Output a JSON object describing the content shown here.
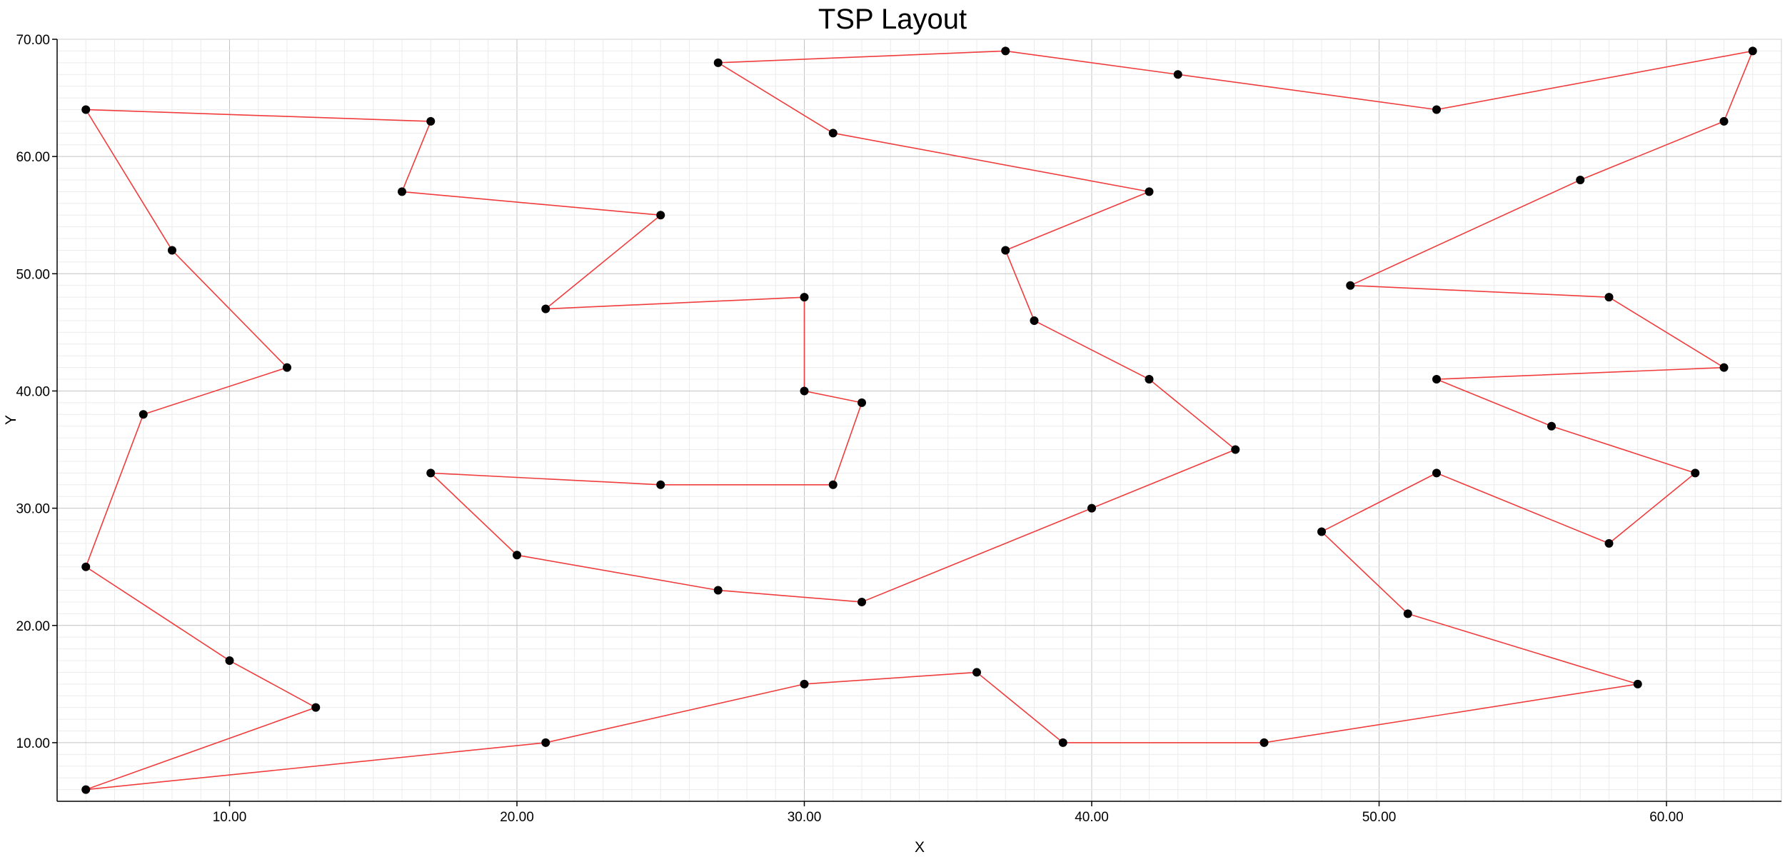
{
  "chart_data": {
    "type": "scatter",
    "title": "TSP Layout",
    "xlabel": "X",
    "ylabel": "Y",
    "xlim": [
      4,
      64
    ],
    "ylim": [
      5,
      70
    ],
    "x_ticks": [
      10,
      20,
      30,
      40,
      50,
      60
    ],
    "y_ticks": [
      10,
      20,
      30,
      40,
      50,
      60,
      70
    ],
    "x_tick_labels": [
      "10.00",
      "20.00",
      "30.00",
      "40.00",
      "50.00",
      "60.00"
    ],
    "y_tick_labels": [
      "10.00",
      "20.00",
      "30.00",
      "40.00",
      "50.00",
      "60.00",
      "70.00"
    ],
    "grid": true,
    "line_color": "#f03c3c",
    "point_color": "#000000",
    "route": [
      [
        5,
        64
      ],
      [
        17,
        63
      ],
      [
        16,
        57
      ],
      [
        25,
        55
      ],
      [
        21,
        47
      ],
      [
        30,
        48
      ],
      [
        30,
        40
      ],
      [
        32,
        39
      ],
      [
        31,
        32
      ],
      [
        25,
        32
      ],
      [
        17,
        33
      ],
      [
        20,
        26
      ],
      [
        27,
        23
      ],
      [
        32,
        22
      ],
      [
        40,
        30
      ],
      [
        45,
        35
      ],
      [
        42,
        41
      ],
      [
        38,
        46
      ],
      [
        37,
        52
      ],
      [
        42,
        57
      ],
      [
        31,
        62
      ],
      [
        27,
        68
      ],
      [
        37,
        69
      ],
      [
        43,
        67
      ],
      [
        52,
        64
      ],
      [
        63,
        69
      ],
      [
        62,
        63
      ],
      [
        57,
        58
      ],
      [
        49,
        49
      ],
      [
        58,
        48
      ],
      [
        62,
        42
      ],
      [
        52,
        41
      ],
      [
        56,
        37
      ],
      [
        61,
        33
      ],
      [
        58,
        27
      ],
      [
        52,
        33
      ],
      [
        48,
        28
      ],
      [
        51,
        21
      ],
      [
        59,
        15
      ],
      [
        46,
        10
      ],
      [
        39,
        10
      ],
      [
        36,
        16
      ],
      [
        30,
        15
      ],
      [
        21,
        10
      ],
      [
        5,
        6
      ],
      [
        13,
        13
      ],
      [
        10,
        17
      ],
      [
        5,
        25
      ],
      [
        7,
        38
      ],
      [
        12,
        42
      ],
      [
        8,
        52
      ],
      [
        5,
        64
      ]
    ]
  }
}
